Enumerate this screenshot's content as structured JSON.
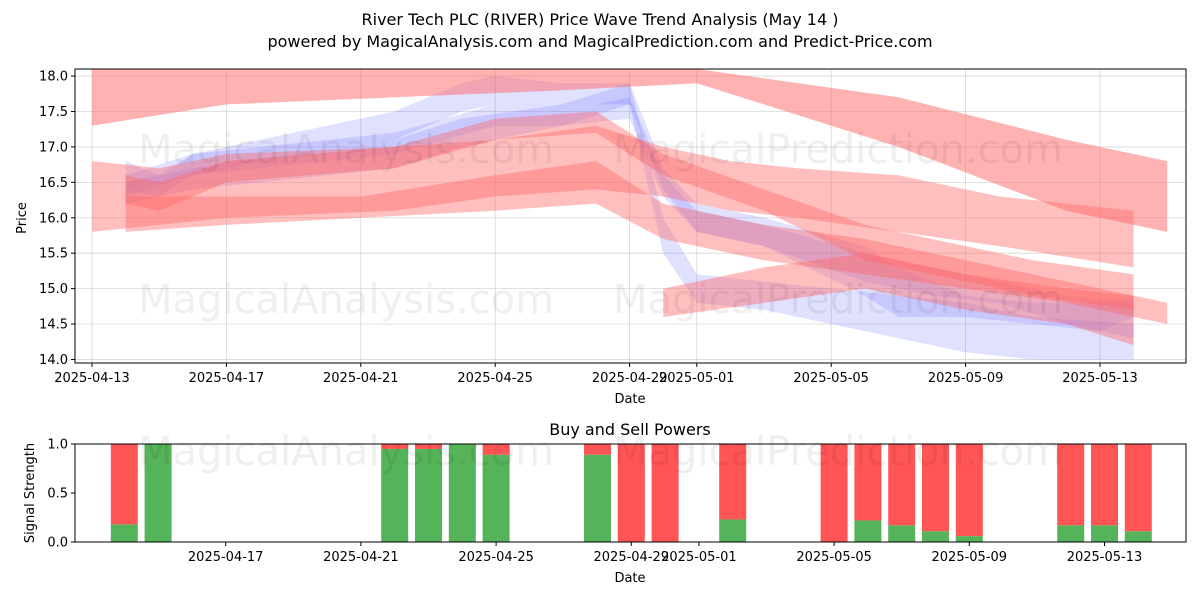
{
  "title_line1": "River Tech PLC (RIVER) Price Wave Trend Analysis (May 14 )",
  "title_line2": "powered by MagicalAnalysis.com and MagicalPrediction.com and Predict-Price.com",
  "watermarks": [
    "MagicalAnalysis.com",
    "MagicalPrediction.com"
  ],
  "colors": {
    "buy": "#4caf50",
    "sell": "#ff4c4c",
    "red_band": "#ff6666",
    "blue_band": "#7070ff"
  },
  "chart_data": [
    {
      "type": "area",
      "title": "River Tech PLC (RIVER) Price Wave Trend Analysis (May 14 )",
      "xlabel": "Date",
      "ylabel": "Price",
      "xlim": [
        "2025-04-13",
        "2025-05-15"
      ],
      "ylim": [
        13.95,
        18.1
      ],
      "yticks": [
        "14.0",
        "14.5",
        "15.0",
        "15.5",
        "16.0",
        "16.5",
        "17.0",
        "17.5",
        "18.0"
      ],
      "xticks": [
        "2025-04-13",
        "2025-04-17",
        "2025-04-21",
        "2025-04-25",
        "2025-04-29",
        "2025-05-01",
        "2025-05-05",
        "2025-05-09",
        "2025-05-13"
      ],
      "red_bands": [
        {
          "x": [
            0,
            4,
            9,
            14,
            18,
            24,
            29,
            32
          ],
          "upper": [
            18.1,
            18.1,
            18.1,
            18.1,
            18.1,
            17.7,
            17.1,
            16.8
          ],
          "lower": [
            17.3,
            17.6,
            17.7,
            17.8,
            17.9,
            17.0,
            16.1,
            15.8
          ]
        },
        {
          "x": [
            0,
            2,
            4,
            9,
            12,
            15,
            17,
            19,
            21,
            24,
            27,
            31
          ],
          "upper": [
            16.8,
            16.7,
            16.9,
            17.0,
            17.1,
            17.3,
            17.0,
            16.8,
            16.7,
            16.6,
            16.3,
            16.1
          ],
          "lower": [
            15.8,
            15.9,
            16.0,
            16.1,
            16.3,
            16.4,
            16.3,
            16.1,
            16.0,
            15.8,
            15.6,
            15.3
          ]
        },
        {
          "x": [
            1,
            2,
            4,
            9,
            12,
            15,
            17,
            20,
            23,
            26,
            28,
            31
          ],
          "upper": [
            16.6,
            16.5,
            16.8,
            17.0,
            17.4,
            17.5,
            16.9,
            16.4,
            15.9,
            15.6,
            15.4,
            15.2
          ],
          "lower": [
            16.2,
            16.1,
            16.5,
            16.7,
            17.1,
            17.2,
            16.6,
            16.1,
            15.4,
            15.1,
            14.9,
            14.7
          ]
        },
        {
          "x": [
            1,
            4,
            8,
            12,
            15,
            17,
            20,
            23,
            26,
            29,
            32
          ],
          "upper": [
            16.3,
            16.3,
            16.3,
            16.6,
            16.8,
            16.2,
            15.9,
            15.7,
            15.4,
            15.1,
            14.8
          ],
          "lower": [
            15.8,
            15.9,
            16.0,
            16.1,
            16.2,
            15.7,
            15.4,
            15.2,
            15.0,
            14.8,
            14.5
          ]
        },
        {
          "x": [
            17,
            20,
            23,
            26,
            29,
            31
          ],
          "upper": [
            15.0,
            15.3,
            15.5,
            15.2,
            15.0,
            14.9
          ],
          "lower": [
            14.6,
            14.8,
            15.0,
            14.7,
            14.5,
            14.2
          ]
        }
      ],
      "blue_bands": [
        {
          "x": [
            1,
            2,
            3,
            6,
            9,
            11,
            12,
            14,
            15,
            16,
            17,
            18,
            20,
            23,
            24,
            26,
            28,
            30,
            31
          ],
          "upper": [
            16.8,
            16.6,
            16.9,
            17.2,
            17.5,
            17.9,
            18.0,
            17.9,
            17.9,
            17.9,
            16.7,
            16.2,
            16.0,
            15.6,
            15.3,
            14.9,
            14.8,
            14.8,
            14.9
          ],
          "lower": [
            16.4,
            16.3,
            16.6,
            16.9,
            17.1,
            17.5,
            17.6,
            17.5,
            17.6,
            17.6,
            16.4,
            15.8,
            15.6,
            14.9,
            14.6,
            14.6,
            14.5,
            14.4,
            14.6
          ]
        },
        {
          "x": [
            1,
            3,
            9,
            12,
            14,
            16,
            17,
            18,
            20,
            23,
            25,
            27,
            29,
            31
          ],
          "upper": [
            16.6,
            16.9,
            17.2,
            17.6,
            17.5,
            17.7,
            16.6,
            16.1,
            15.9,
            15.5,
            15.3,
            15.1,
            14.9,
            14.8
          ],
          "lower": [
            16.3,
            16.6,
            16.9,
            17.3,
            17.3,
            17.4,
            16.3,
            15.8,
            15.6,
            15.1,
            14.9,
            14.8,
            14.5,
            14.3
          ]
        },
        {
          "x": [
            1,
            3,
            9,
            11,
            14,
            16,
            17,
            18,
            20,
            22,
            24,
            26,
            28,
            31
          ],
          "upper": [
            16.5,
            16.7,
            17.1,
            17.4,
            17.6,
            17.9,
            16.0,
            15.2,
            15.1,
            15.0,
            14.9,
            14.8,
            14.6,
            14.5
          ],
          "lower": [
            16.2,
            16.4,
            16.7,
            17.0,
            17.3,
            17.6,
            15.5,
            14.8,
            14.7,
            14.5,
            14.3,
            14.1,
            14.0,
            14.0
          ]
        }
      ]
    },
    {
      "type": "bar",
      "title": "Buy and Sell Powers",
      "xlabel": "Date",
      "ylabel": "Signal Strength",
      "xlim": [
        "2025-04-13",
        "2025-05-15"
      ],
      "ylim": [
        0,
        1.0
      ],
      "yticks": [
        "0.0",
        "0.5",
        "1.0"
      ],
      "xticks": [
        "2025-04-17",
        "2025-04-21",
        "2025-04-25",
        "2025-04-29",
        "2025-05-01",
        "2025-05-05",
        "2025-05-09",
        "2025-05-13"
      ],
      "dates": [
        "2025-04-14",
        "2025-04-15",
        "2025-04-22",
        "2025-04-23",
        "2025-04-24",
        "2025-04-25",
        "2025-04-28",
        "2025-04-29",
        "2025-04-30",
        "2025-05-02",
        "2025-05-05",
        "2025-05-06",
        "2025-05-07",
        "2025-05-08",
        "2025-05-09",
        "2025-05-12",
        "2025-05-13",
        "2025-05-14"
      ],
      "series": [
        {
          "name": "Buy",
          "values": [
            0.18,
            1.0,
            0.95,
            0.95,
            1.0,
            0.89,
            0.89,
            0.0,
            0.0,
            0.23,
            0.0,
            0.22,
            0.17,
            0.11,
            0.06,
            0.17,
            0.17,
            0.11
          ]
        },
        {
          "name": "Sell",
          "values": [
            0.82,
            0.0,
            0.05,
            0.05,
            0.0,
            0.11,
            0.11,
            1.0,
            1.0,
            0.77,
            1.0,
            0.78,
            0.83,
            0.89,
            0.94,
            0.83,
            0.83,
            0.89
          ]
        }
      ]
    }
  ]
}
